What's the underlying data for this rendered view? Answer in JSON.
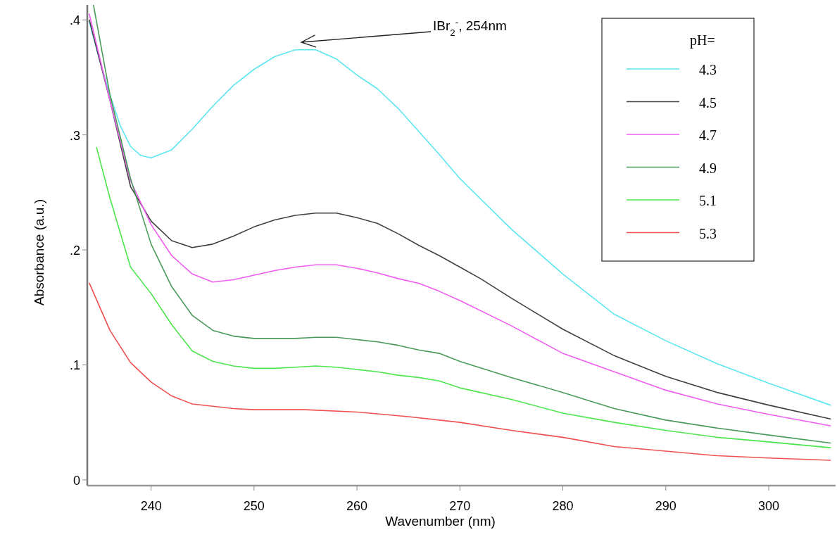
{
  "chart_data": {
    "type": "line",
    "xlabel": "Wavenumber (nm)",
    "ylabel": "Absorbance (a.u.)",
    "legend_title": "pH=",
    "legend": "top right",
    "grid": false,
    "line_style": "solid",
    "xlim": [
      233.8,
      306.5
    ],
    "xticks": [
      240,
      250,
      260,
      270,
      280,
      290,
      300
    ],
    "ylim": [
      -0.005,
      0.413
    ],
    "yticks": [
      0,
      {
        "value": 0.1,
        "label": ".1"
      },
      {
        "value": 0.2,
        "label": ".2"
      },
      {
        "value": 0.3,
        "label": ".3"
      },
      {
        "value": 0.4,
        "label": ".4"
      }
    ],
    "annotations": [
      "IBr$_{2}$$^{-}$, 254nm"
    ],
    "series": [
      {
        "name": "4.3",
        "color": "#5ce6f0",
        "x": [
          234,
          235,
          236,
          237,
          238,
          239,
          240,
          242,
          244,
          246,
          248,
          250,
          252,
          254,
          256,
          258,
          260,
          262,
          264,
          266,
          268,
          270,
          275,
          280,
          285,
          290,
          295,
          300,
          306
        ],
        "values": [
          0.398,
          0.365,
          0.335,
          0.308,
          0.29,
          0.282,
          0.28,
          0.287,
          0.305,
          0.325,
          0.343,
          0.357,
          0.368,
          0.374,
          0.374,
          0.366,
          0.352,
          0.34,
          0.323,
          0.303,
          0.283,
          0.262,
          0.218,
          0.179,
          0.144,
          0.121,
          0.101,
          0.084,
          0.065
        ]
      },
      {
        "name": "4.5",
        "color": "#404040",
        "x": [
          234,
          236,
          238,
          240,
          242,
          244,
          246,
          248,
          250,
          252,
          254,
          256,
          258,
          260,
          262,
          264,
          266,
          268,
          270,
          272,
          275,
          280,
          285,
          290,
          295,
          300,
          306
        ],
        "values": [
          0.4,
          0.33,
          0.255,
          0.225,
          0.208,
          0.202,
          0.205,
          0.212,
          0.22,
          0.226,
          0.23,
          0.232,
          0.232,
          0.228,
          0.223,
          0.214,
          0.204,
          0.195,
          0.185,
          0.175,
          0.158,
          0.131,
          0.108,
          0.09,
          0.076,
          0.065,
          0.053
        ]
      },
      {
        "name": "4.7",
        "color": "#f05cf0",
        "x": [
          234,
          236,
          238,
          240,
          242,
          244,
          246,
          248,
          250,
          252,
          254,
          256,
          258,
          260,
          262,
          264,
          266,
          268,
          270,
          275,
          280,
          285,
          290,
          295,
          300,
          306
        ],
        "values": [
          0.405,
          0.33,
          0.26,
          0.222,
          0.195,
          0.179,
          0.172,
          0.174,
          0.178,
          0.182,
          0.185,
          0.187,
          0.187,
          0.184,
          0.18,
          0.175,
          0.171,
          0.164,
          0.156,
          0.134,
          0.11,
          0.094,
          0.078,
          0.066,
          0.057,
          0.047
        ]
      },
      {
        "name": "4.9",
        "color": "#4a9a5a",
        "x": [
          234.4,
          236,
          238,
          240,
          242,
          244,
          246,
          248,
          250,
          252,
          254,
          256,
          258,
          260,
          262,
          264,
          266,
          268,
          270,
          275,
          280,
          285,
          290,
          295,
          300,
          306
        ],
        "values": [
          0.413,
          0.335,
          0.262,
          0.205,
          0.168,
          0.143,
          0.13,
          0.125,
          0.123,
          0.123,
          0.123,
          0.124,
          0.124,
          0.122,
          0.12,
          0.117,
          0.113,
          0.11,
          0.103,
          0.089,
          0.076,
          0.062,
          0.052,
          0.045,
          0.039,
          0.032
        ]
      },
      {
        "name": "5.1",
        "color": "#4ce64c",
        "x": [
          234.7,
          236,
          238,
          240,
          242,
          244,
          246,
          248,
          250,
          252,
          254,
          256,
          258,
          260,
          262,
          264,
          266,
          268,
          270,
          275,
          280,
          285,
          290,
          295,
          300,
          306
        ],
        "values": [
          0.289,
          0.245,
          0.185,
          0.162,
          0.135,
          0.112,
          0.103,
          0.099,
          0.097,
          0.097,
          0.098,
          0.099,
          0.098,
          0.096,
          0.094,
          0.091,
          0.089,
          0.086,
          0.08,
          0.07,
          0.058,
          0.05,
          0.043,
          0.037,
          0.033,
          0.028
        ]
      },
      {
        "name": "5.3",
        "color": "#f05050",
        "x": [
          234,
          236,
          238,
          240,
          242,
          244,
          246,
          248,
          250,
          255,
          260,
          265,
          270,
          275,
          280,
          285,
          290,
          295,
          300,
          306
        ],
        "values": [
          0.171,
          0.13,
          0.102,
          0.085,
          0.073,
          0.066,
          0.064,
          0.062,
          0.061,
          0.061,
          0.059,
          0.055,
          0.05,
          0.043,
          0.037,
          0.029,
          0.025,
          0.021,
          0.019,
          0.017
        ]
      }
    ]
  }
}
